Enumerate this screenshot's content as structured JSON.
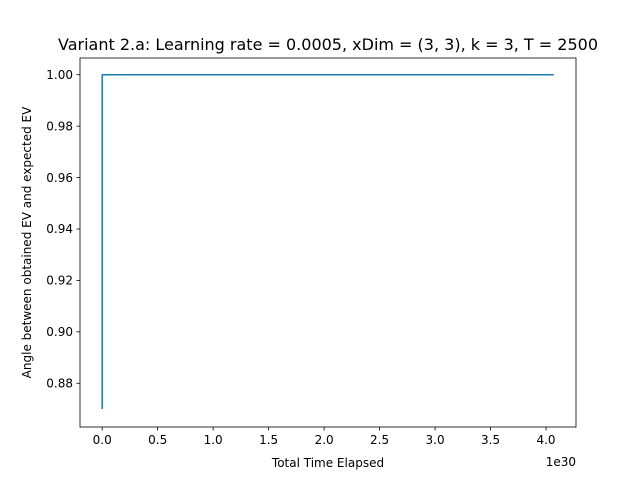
{
  "chart_data": {
    "type": "line",
    "title": "Variant 2.a: Learning rate = 0.0005, xDim = (3, 3), k = 3, T = 2500",
    "xlabel": "Total Time Elapsed",
    "ylabel": "Angle between obtained EV and expected EV",
    "x_offset_label": "1e30",
    "xlim": [
      -0.2,
      4.27
    ],
    "ylim": [
      0.863,
      1.0065
    ],
    "x_ticks": [
      0.0,
      0.5,
      1.0,
      1.5,
      2.0,
      2.5,
      3.0,
      3.5,
      4.0
    ],
    "x_tick_labels": [
      "0.0",
      "0.5",
      "1.0",
      "1.5",
      "2.0",
      "2.5",
      "3.0",
      "3.5",
      "4.0"
    ],
    "y_ticks": [
      0.88,
      0.9,
      0.92,
      0.94,
      0.96,
      0.98,
      1.0
    ],
    "y_tick_labels": [
      "0.88",
      "0.90",
      "0.92",
      "0.94",
      "0.96",
      "0.98",
      "1.00"
    ],
    "grid": false,
    "series": [
      {
        "color": "#1f77b4",
        "x": [
          0.0,
          0.0,
          4.07
        ],
        "y": [
          0.87,
          1.0,
          1.0
        ]
      }
    ]
  }
}
